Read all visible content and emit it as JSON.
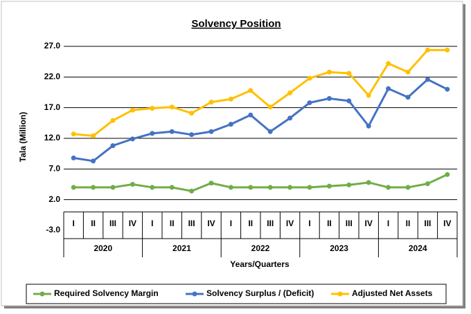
{
  "chart_data": {
    "type": "line",
    "title": "Solvency Position",
    "y_label": "Tala (Million)",
    "x_label": "Years/Quarters",
    "categories": [
      "I",
      "II",
      "III",
      "IV",
      "I",
      "II",
      "III",
      "IV",
      "I",
      "II",
      "III",
      "IV",
      "I",
      "II",
      "III",
      "IV",
      "I",
      "II",
      "III",
      "IV"
    ],
    "category_groups": [
      "2020",
      "2021",
      "2022",
      "2023",
      "2024"
    ],
    "series": [
      {
        "name": "Required Solvency Margin",
        "color": "#70ad47",
        "values": [
          4.0,
          4.0,
          4.0,
          4.5,
          4.0,
          4.0,
          3.4,
          4.7,
          4.0,
          4.0,
          4.0,
          4.0,
          4.0,
          4.2,
          4.4,
          4.8,
          4.0,
          4.0,
          4.6,
          6.1
        ]
      },
      {
        "name": "Solvency Surplus / (Deficit)",
        "color": "#4472c4",
        "values": [
          8.8,
          8.3,
          10.8,
          11.9,
          12.8,
          13.1,
          12.6,
          13.1,
          14.3,
          15.8,
          13.1,
          15.3,
          17.8,
          18.5,
          18.1,
          14.0,
          20.1,
          18.7,
          21.6,
          20.0
        ]
      },
      {
        "name": "Adjusted Net Assets",
        "color": "#ffc000",
        "values": [
          12.7,
          12.4,
          14.9,
          16.6,
          16.9,
          17.1,
          16.1,
          17.9,
          18.4,
          19.8,
          17.1,
          19.4,
          21.8,
          22.8,
          22.6,
          19.0,
          24.2,
          22.8,
          26.4,
          26.4
        ]
      }
    ],
    "ylim": [
      -3,
      27
    ],
    "yticks": [
      {
        "value": -3,
        "label": "-3.0"
      },
      {
        "value": 2,
        "label": "2.0"
      },
      {
        "value": 7,
        "label": "7.0"
      },
      {
        "value": 12,
        "label": "12.0"
      },
      {
        "value": 17,
        "label": "17.0"
      },
      {
        "value": 22,
        "label": "22.0"
      },
      {
        "value": 27,
        "label": "27.0"
      }
    ],
    "grid": true,
    "legend": "bottom"
  }
}
